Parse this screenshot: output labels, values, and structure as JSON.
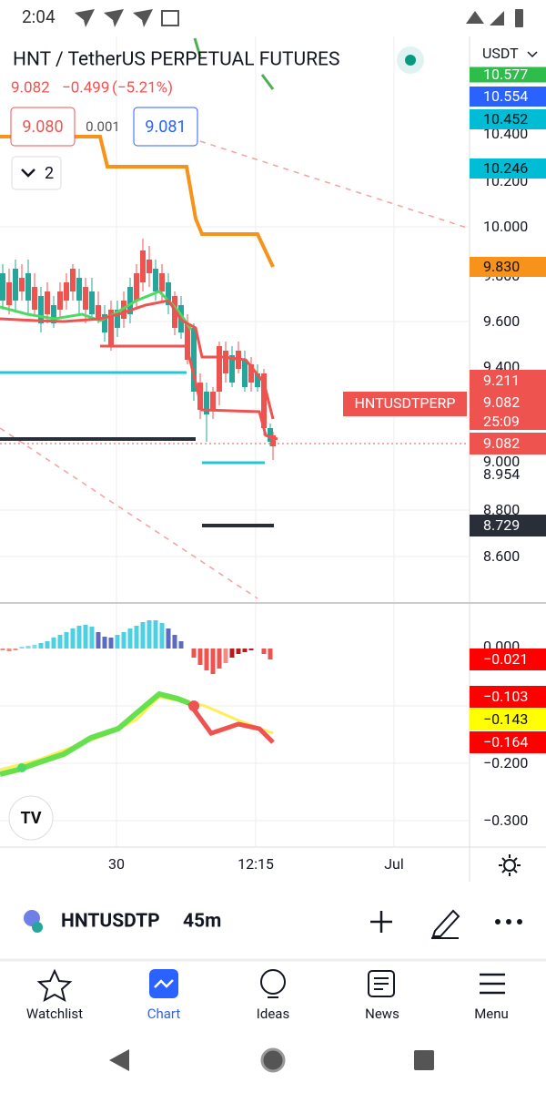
{
  "status_bar": {
    "time": "2:04"
  },
  "header": {
    "title": "HNT / TetherUS PERPETUAL FUTURES",
    "last": "9.082",
    "change": "−0.499",
    "change_pct": "(−5.21%)"
  },
  "order_boxes": {
    "sell": "9.080",
    "spread": "0.001",
    "buy": "9.081"
  },
  "indicator_count": "2",
  "price_axis": {
    "currency": "USDT",
    "labels": [
      "10.577",
      "10.554",
      "10.452",
      "10.400",
      "10.246",
      "10.200",
      "10.000",
      "9.830",
      "9.800",
      "9.600",
      "9.400",
      "9.211",
      "9.082",
      "25:09",
      "9.082",
      "9.000",
      "8.954",
      "8.800",
      "8.729",
      "8.600"
    ]
  },
  "symbol_tag": "HNTUSDTPERP",
  "indicator_axis": {
    "labels": [
      "0.000",
      "−0.021",
      "−0.103",
      "−0.143",
      "−0.164",
      "−0.200",
      "−0.300"
    ]
  },
  "time_axis": {
    "labels": [
      "30",
      "12:15",
      "Jul"
    ]
  },
  "symbol_bar": {
    "symbol": "HNTUSDTP",
    "interval": "45m"
  },
  "nav": {
    "items": [
      "Watchlist",
      "Chart",
      "Ideas",
      "News",
      "Menu"
    ]
  }
}
